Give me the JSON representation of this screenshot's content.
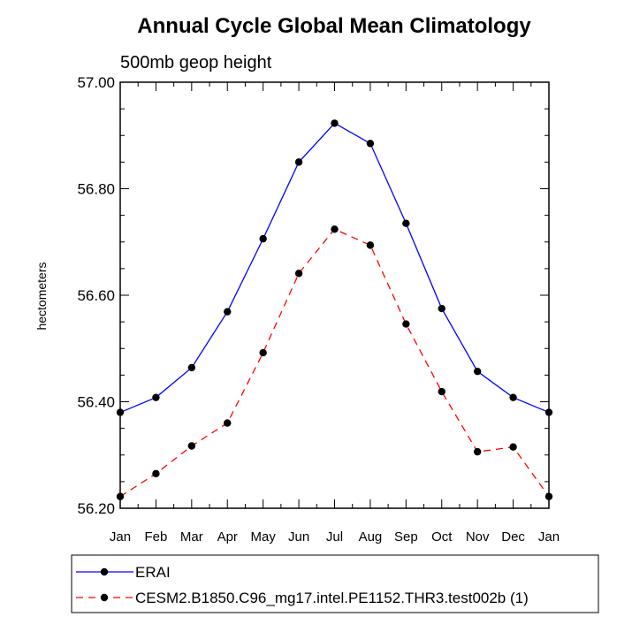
{
  "chart_data": {
    "type": "line",
    "title": "Annual Cycle Global Mean Climatology",
    "subtitle": "500mb geop height",
    "ylabel": "hectometers",
    "xlabel": "",
    "categories": [
      "Jan",
      "Feb",
      "Mar",
      "Apr",
      "May",
      "Jun",
      "Jul",
      "Aug",
      "Sep",
      "Oct",
      "Nov",
      "Dec",
      "Jan"
    ],
    "ylim": [
      56.2,
      57.0
    ],
    "yticks": [
      "56.20",
      "56.40",
      "56.60",
      "56.80",
      "57.00"
    ],
    "series": [
      {
        "name": "ERAI",
        "color": "#0000ff",
        "dash": "solid",
        "values": [
          56.38,
          56.408,
          56.464,
          56.569,
          56.706,
          56.85,
          56.923,
          56.885,
          56.735,
          56.575,
          56.457,
          56.408,
          56.38
        ]
      },
      {
        "name": "CESM2.B1850.C96_mg17.intel.PE1152.THR3.test002b (1)",
        "color": "#ff0000",
        "dash": "dashed",
        "values": [
          56.222,
          56.265,
          56.317,
          56.36,
          56.492,
          56.641,
          56.724,
          56.694,
          56.546,
          56.419,
          56.306,
          56.315,
          56.222
        ]
      }
    ],
    "legend": "bottom"
  }
}
